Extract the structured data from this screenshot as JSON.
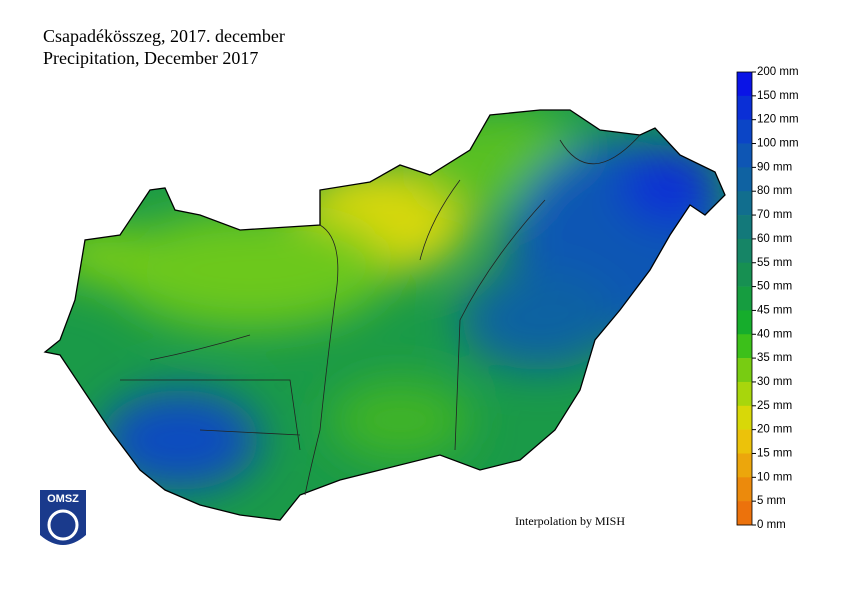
{
  "header": {
    "title": "Csapadékösszeg, 2017. december",
    "subtitle": "Precipitation, December 2017"
  },
  "legend": {
    "labels": [
      "200 mm",
      "150 mm",
      "120 mm",
      "100 mm",
      "90 mm",
      "80 mm",
      "70 mm",
      "60 mm",
      "55 mm",
      "50 mm",
      "45 mm",
      "40 mm",
      "35 mm",
      "30 mm",
      "25 mm",
      "20 mm",
      "15 mm",
      "10 mm",
      "5 mm",
      "0 mm"
    ],
    "colors": [
      "#0a14e6",
      "#0a2fd6",
      "#0b45c6",
      "#0e56b4",
      "#0f62a2",
      "#116e8e",
      "#13797a",
      "#168566",
      "#179052",
      "#169d40",
      "#16ad2c",
      "#3cc01a",
      "#78cc12",
      "#a8d60c",
      "#d8d808",
      "#ecc20a",
      "#eca60c",
      "#ec8a0c",
      "#ec720c"
    ]
  },
  "credit": "Interpolation by MISH",
  "logo": {
    "text": "OMSZ"
  }
}
